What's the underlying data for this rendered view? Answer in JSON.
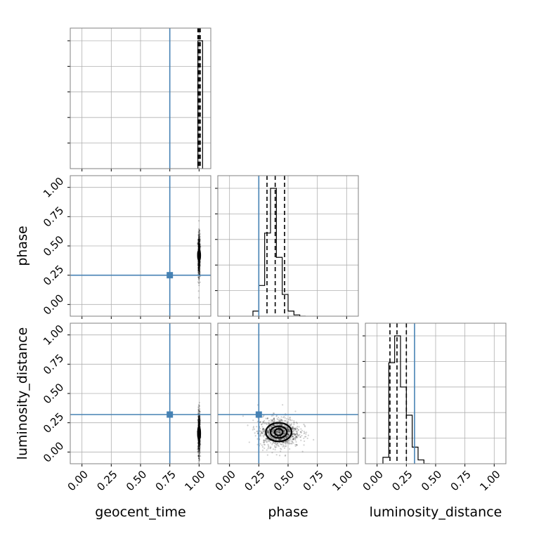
{
  "chart_data": {
    "type": "corner",
    "parameters": [
      "geocent_time",
      "phase",
      "luminosity_distance"
    ],
    "axis_range": [
      -0.1,
      1.1
    ],
    "tick_values": [
      0.0,
      0.25,
      0.5,
      0.75,
      1.0
    ],
    "tick_labels": [
      "0.00",
      "0.25",
      "0.50",
      "0.75",
      "1.00"
    ],
    "grid": true,
    "colors": {
      "truth": "#4682b4",
      "samples": "#000000",
      "frame": "#808080"
    },
    "truths": {
      "geocent_time": 0.75,
      "phase": 0.25,
      "luminosity_distance": 0.32
    },
    "histograms": {
      "geocent_time": {
        "bin_edges": [
          0.99,
          1.03
        ],
        "counts": [
          1.0
        ],
        "quantiles": [
          0.99,
          1.0,
          1.01
        ]
      },
      "phase": {
        "bin_edges": [
          0.2,
          0.25,
          0.3,
          0.35,
          0.4,
          0.45,
          0.5,
          0.55,
          0.6,
          0.65
        ],
        "counts": [
          0.04,
          0.24,
          0.65,
          1.0,
          0.46,
          0.17,
          0.04,
          0.01,
          0.0
        ],
        "quantiles": [
          0.32,
          0.39,
          0.47
        ]
      },
      "luminosity_distance": {
        "bin_edges": [
          0.05,
          0.1,
          0.15,
          0.2,
          0.25,
          0.3,
          0.35,
          0.4,
          0.45
        ],
        "counts": [
          0.05,
          0.79,
          1.0,
          0.6,
          0.38,
          0.13,
          0.03,
          0.0
        ],
        "quantiles": [
          0.11,
          0.17,
          0.25
        ]
      }
    },
    "scatter_panels": [
      {
        "x": "geocent_time",
        "y": "phase",
        "center": [
          1.0,
          0.42
        ],
        "spread": [
          0.004,
          0.09
        ],
        "contours": [
          {
            "rx": 0.01,
            "ry": 0.04
          },
          {
            "rx": 0.006,
            "ry": 0.02
          }
        ]
      },
      {
        "x": "geocent_time",
        "y": "luminosity_distance",
        "center": [
          1.0,
          0.16
        ],
        "spread": [
          0.004,
          0.09
        ],
        "contours": [
          {
            "rx": 0.01,
            "ry": 0.05
          },
          {
            "rx": 0.006,
            "ry": 0.025
          }
        ]
      },
      {
        "x": "phase",
        "y": "luminosity_distance",
        "center": [
          0.42,
          0.17
        ],
        "spread": [
          0.09,
          0.065
        ],
        "contours": [
          {
            "rx": 0.11,
            "ry": 0.08
          },
          {
            "rx": 0.07,
            "ry": 0.05
          },
          {
            "rx": 0.035,
            "ry": 0.028
          }
        ]
      }
    ]
  }
}
